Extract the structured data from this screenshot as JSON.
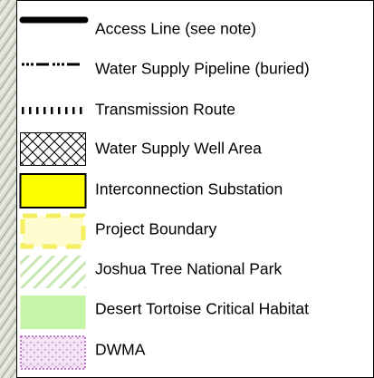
{
  "legend": {
    "items": [
      {
        "label": "Access Line (see note)"
      },
      {
        "label": "Water Supply Pipeline (buried)"
      },
      {
        "label": "Transmission Route"
      },
      {
        "label": "Water Supply Well Area"
      },
      {
        "label": "Interconnection Substation"
      },
      {
        "label": "Project Boundary"
      },
      {
        "label": "Joshua Tree National Park"
      },
      {
        "label": "Desert Tortoise Critical Habitat"
      },
      {
        "label": "DWMA"
      }
    ]
  }
}
